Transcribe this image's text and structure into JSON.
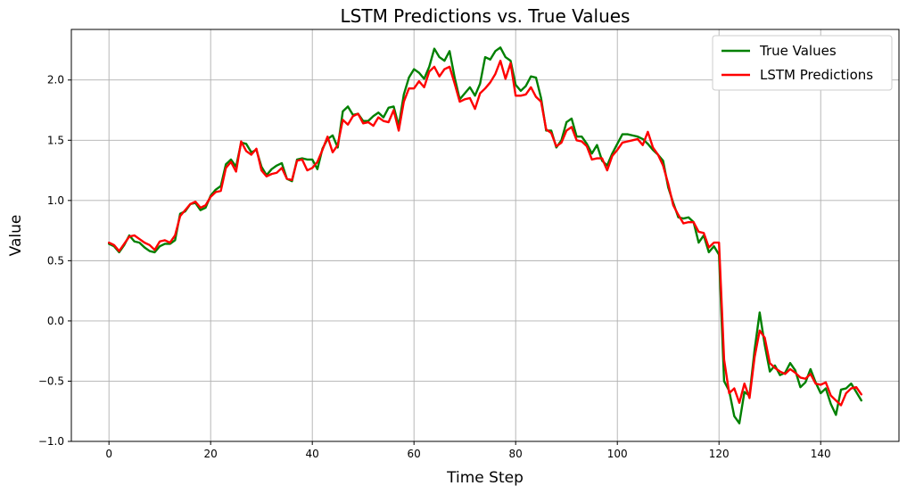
{
  "chart_data": {
    "type": "line",
    "title": "LSTM Predictions vs. True Values",
    "xlabel": "Time Step",
    "ylabel": "Value",
    "xlim": [
      -7.4,
      155.4
    ],
    "ylim": [
      -1.0,
      2.42
    ],
    "xticks": [
      0,
      20,
      40,
      60,
      80,
      100,
      120,
      140
    ],
    "yticks": [
      -1.0,
      -0.5,
      0.0,
      0.5,
      1.0,
      1.5,
      2.0
    ],
    "xtick_labels": [
      "0",
      "20",
      "40",
      "60",
      "80",
      "100",
      "120",
      "140"
    ],
    "ytick_labels": [
      "−1.0",
      "−0.5",
      "0.0",
      "0.5",
      "1.0",
      "1.5",
      "2.0"
    ],
    "grid": true,
    "legend_position": "top-right",
    "series": [
      {
        "name": "True Values",
        "color": "#008000",
        "values": [
          0.64,
          0.62,
          0.57,
          0.63,
          0.71,
          0.66,
          0.65,
          0.61,
          0.58,
          0.57,
          0.62,
          0.64,
          0.64,
          0.67,
          0.89,
          0.91,
          0.97,
          0.98,
          0.92,
          0.94,
          1.04,
          1.09,
          1.12,
          1.3,
          1.34,
          1.28,
          1.48,
          1.47,
          1.4,
          1.42,
          1.28,
          1.21,
          1.26,
          1.29,
          1.31,
          1.18,
          1.16,
          1.34,
          1.35,
          1.34,
          1.34,
          1.26,
          1.43,
          1.51,
          1.54,
          1.44,
          1.74,
          1.78,
          1.71,
          1.72,
          1.66,
          1.66,
          1.7,
          1.73,
          1.69,
          1.77,
          1.78,
          1.62,
          1.88,
          2.02,
          2.09,
          2.06,
          2.01,
          2.11,
          2.26,
          2.19,
          2.16,
          2.24,
          2.02,
          1.84,
          1.89,
          1.94,
          1.87,
          1.97,
          2.19,
          2.17,
          2.24,
          2.27,
          2.19,
          2.16,
          1.96,
          1.91,
          1.95,
          2.03,
          2.02,
          1.85,
          1.58,
          1.58,
          1.44,
          1.5,
          1.65,
          1.68,
          1.53,
          1.53,
          1.47,
          1.39,
          1.46,
          1.33,
          1.29,
          1.39,
          1.47,
          1.55,
          1.55,
          1.54,
          1.53,
          1.51,
          1.47,
          1.42,
          1.38,
          1.33,
          1.11,
          0.98,
          0.86,
          0.85,
          0.86,
          0.82,
          0.65,
          0.71,
          0.57,
          0.62,
          0.55,
          -0.5,
          -0.58,
          -0.79,
          -0.85,
          -0.59,
          -0.62,
          -0.24,
          0.07,
          -0.2,
          -0.42,
          -0.37,
          -0.45,
          -0.43,
          -0.35,
          -0.41,
          -0.55,
          -0.51,
          -0.4,
          -0.51,
          -0.6,
          -0.56,
          -0.69,
          -0.78,
          -0.57,
          -0.56,
          -0.52,
          -0.59,
          -0.66
        ]
      },
      {
        "name": "LSTM Predictions",
        "color": "#ff0000",
        "values": [
          0.65,
          0.63,
          0.58,
          0.64,
          0.7,
          0.71,
          0.68,
          0.65,
          0.63,
          0.59,
          0.66,
          0.67,
          0.65,
          0.71,
          0.87,
          0.92,
          0.97,
          0.99,
          0.94,
          0.96,
          1.03,
          1.07,
          1.08,
          1.27,
          1.32,
          1.24,
          1.49,
          1.41,
          1.38,
          1.43,
          1.25,
          1.2,
          1.22,
          1.23,
          1.27,
          1.18,
          1.17,
          1.33,
          1.34,
          1.25,
          1.27,
          1.32,
          1.42,
          1.53,
          1.4,
          1.46,
          1.67,
          1.63,
          1.7,
          1.72,
          1.64,
          1.65,
          1.62,
          1.69,
          1.66,
          1.65,
          1.75,
          1.58,
          1.82,
          1.93,
          1.93,
          1.99,
          1.94,
          2.07,
          2.11,
          2.03,
          2.09,
          2.11,
          1.97,
          1.82,
          1.84,
          1.85,
          1.76,
          1.89,
          1.93,
          1.98,
          2.05,
          2.16,
          2.01,
          2.14,
          1.87,
          1.87,
          1.88,
          1.94,
          1.86,
          1.82,
          1.59,
          1.56,
          1.45,
          1.48,
          1.58,
          1.61,
          1.5,
          1.49,
          1.45,
          1.34,
          1.35,
          1.35,
          1.25,
          1.37,
          1.42,
          1.48,
          1.49,
          1.5,
          1.51,
          1.46,
          1.57,
          1.44,
          1.38,
          1.29,
          1.14,
          0.96,
          0.88,
          0.81,
          0.82,
          0.82,
          0.74,
          0.73,
          0.61,
          0.65,
          0.65,
          -0.32,
          -0.6,
          -0.56,
          -0.68,
          -0.52,
          -0.64,
          -0.3,
          -0.08,
          -0.14,
          -0.35,
          -0.39,
          -0.42,
          -0.44,
          -0.4,
          -0.43,
          -0.47,
          -0.48,
          -0.44,
          -0.52,
          -0.53,
          -0.51,
          -0.62,
          -0.66,
          -0.7,
          -0.6,
          -0.56,
          -0.55,
          -0.61
        ]
      }
    ]
  }
}
